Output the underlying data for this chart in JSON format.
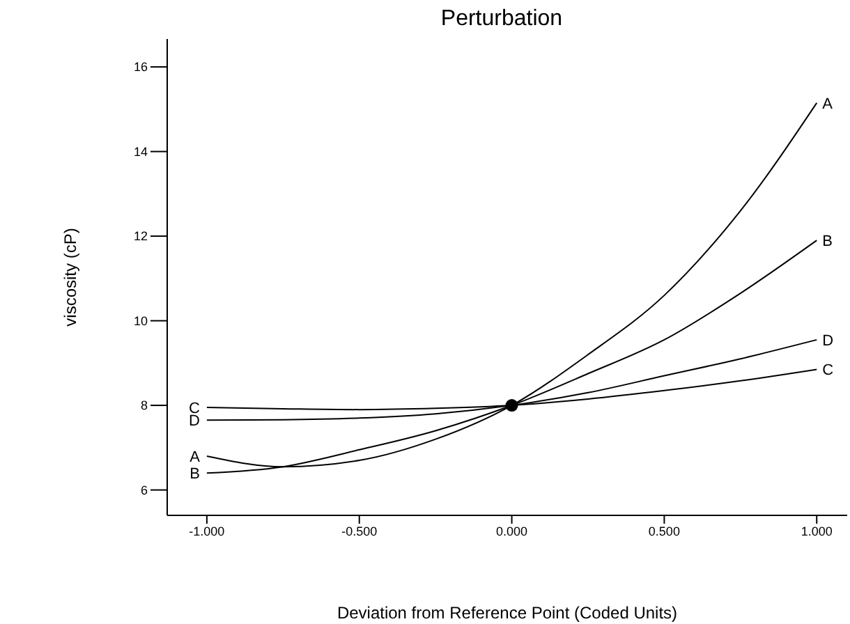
{
  "chart_data": {
    "type": "line",
    "title": "Perturbation",
    "xlabel": "Deviation from Reference Point (Coded Units)",
    "ylabel": "viscosity (cP)",
    "x": [
      -1,
      -0.75,
      -0.5,
      -0.25,
      0,
      0.25,
      0.5,
      0.75,
      1
    ],
    "series": [
      {
        "name": "A",
        "color": "#000000",
        "values": [
          6.8,
          6.55,
          6.7,
          7.2,
          8,
          9.2,
          10.6,
          12.6,
          15.15
        ]
      },
      {
        "name": "B",
        "color": "#000000",
        "values": [
          6.4,
          6.55,
          6.95,
          7.4,
          8,
          8.75,
          9.55,
          10.65,
          11.9
        ]
      },
      {
        "name": "C",
        "color": "#000000",
        "values": [
          7.95,
          7.92,
          7.9,
          7.93,
          8,
          8.15,
          8.35,
          8.58,
          8.85
        ]
      },
      {
        "name": "D",
        "color": "#000000",
        "values": [
          7.65,
          7.66,
          7.7,
          7.8,
          8,
          8.3,
          8.7,
          9.1,
          9.55
        ]
      },
      {
        "type": "scatter",
        "x": [
          0
        ],
        "values": [
          8
        ],
        "color": "#000000",
        "marker": "circle"
      }
    ],
    "xlim": [
      -1.13,
      1.1
    ],
    "xticks": [
      {
        "value": -1,
        "label": "-1.000"
      },
      {
        "value": -0.5,
        "label": "-0.500"
      },
      {
        "value": 0,
        "label": "0.000"
      },
      {
        "value": 0.5,
        "label": "0.500"
      },
      {
        "value": 1,
        "label": "1.000"
      }
    ],
    "ylim": [
      5.4,
      16.66
    ],
    "yticks": [
      6,
      8,
      10,
      12,
      14,
      16
    ],
    "marker": "none",
    "line_style": "solid"
  }
}
